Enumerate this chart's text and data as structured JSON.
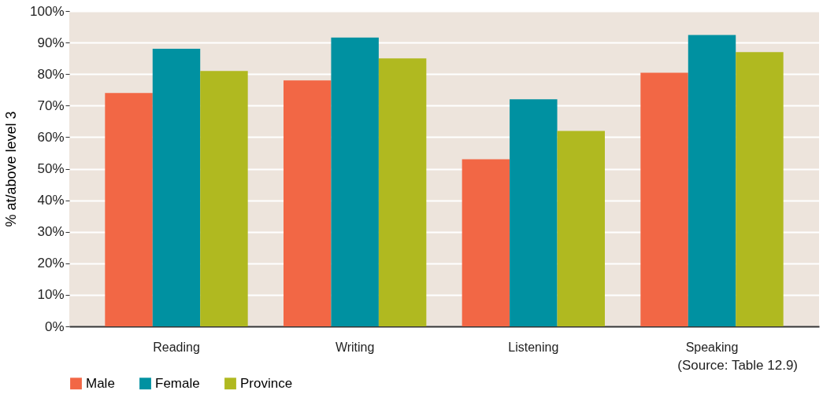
{
  "chart_data": {
    "type": "bar",
    "ylabel": "% at/above level 3",
    "categories": [
      "Reading",
      "Writing",
      "Listening",
      "Speaking"
    ],
    "series": [
      {
        "name": "Male",
        "color": "#f26745",
        "values": [
          74,
          78,
          53,
          80.4
        ]
      },
      {
        "name": "Female",
        "color": "#0091a1",
        "values": [
          88,
          91.6,
          72,
          92.4
        ]
      },
      {
        "name": "Province",
        "color": "#b0b920",
        "values": [
          81,
          85,
          62,
          87
        ]
      }
    ],
    "ylim": [
      0,
      100
    ],
    "yticks": [
      {
        "value": 0,
        "label": "0%"
      },
      {
        "value": 10,
        "label": "10%"
      },
      {
        "value": 20,
        "label": "20%"
      },
      {
        "value": 30,
        "label": "30%"
      },
      {
        "value": 40,
        "label": "40%"
      },
      {
        "value": 50,
        "label": "50%"
      },
      {
        "value": 60,
        "label": "60%"
      },
      {
        "value": 70,
        "label": "70%"
      },
      {
        "value": 80,
        "label": "80%"
      },
      {
        "value": 90,
        "label": "90%"
      },
      {
        "value": 100,
        "label": "100%"
      }
    ],
    "grid": "y",
    "legend": "bottom",
    "annotations": [
      "(Source: Table 12.9)"
    ]
  }
}
